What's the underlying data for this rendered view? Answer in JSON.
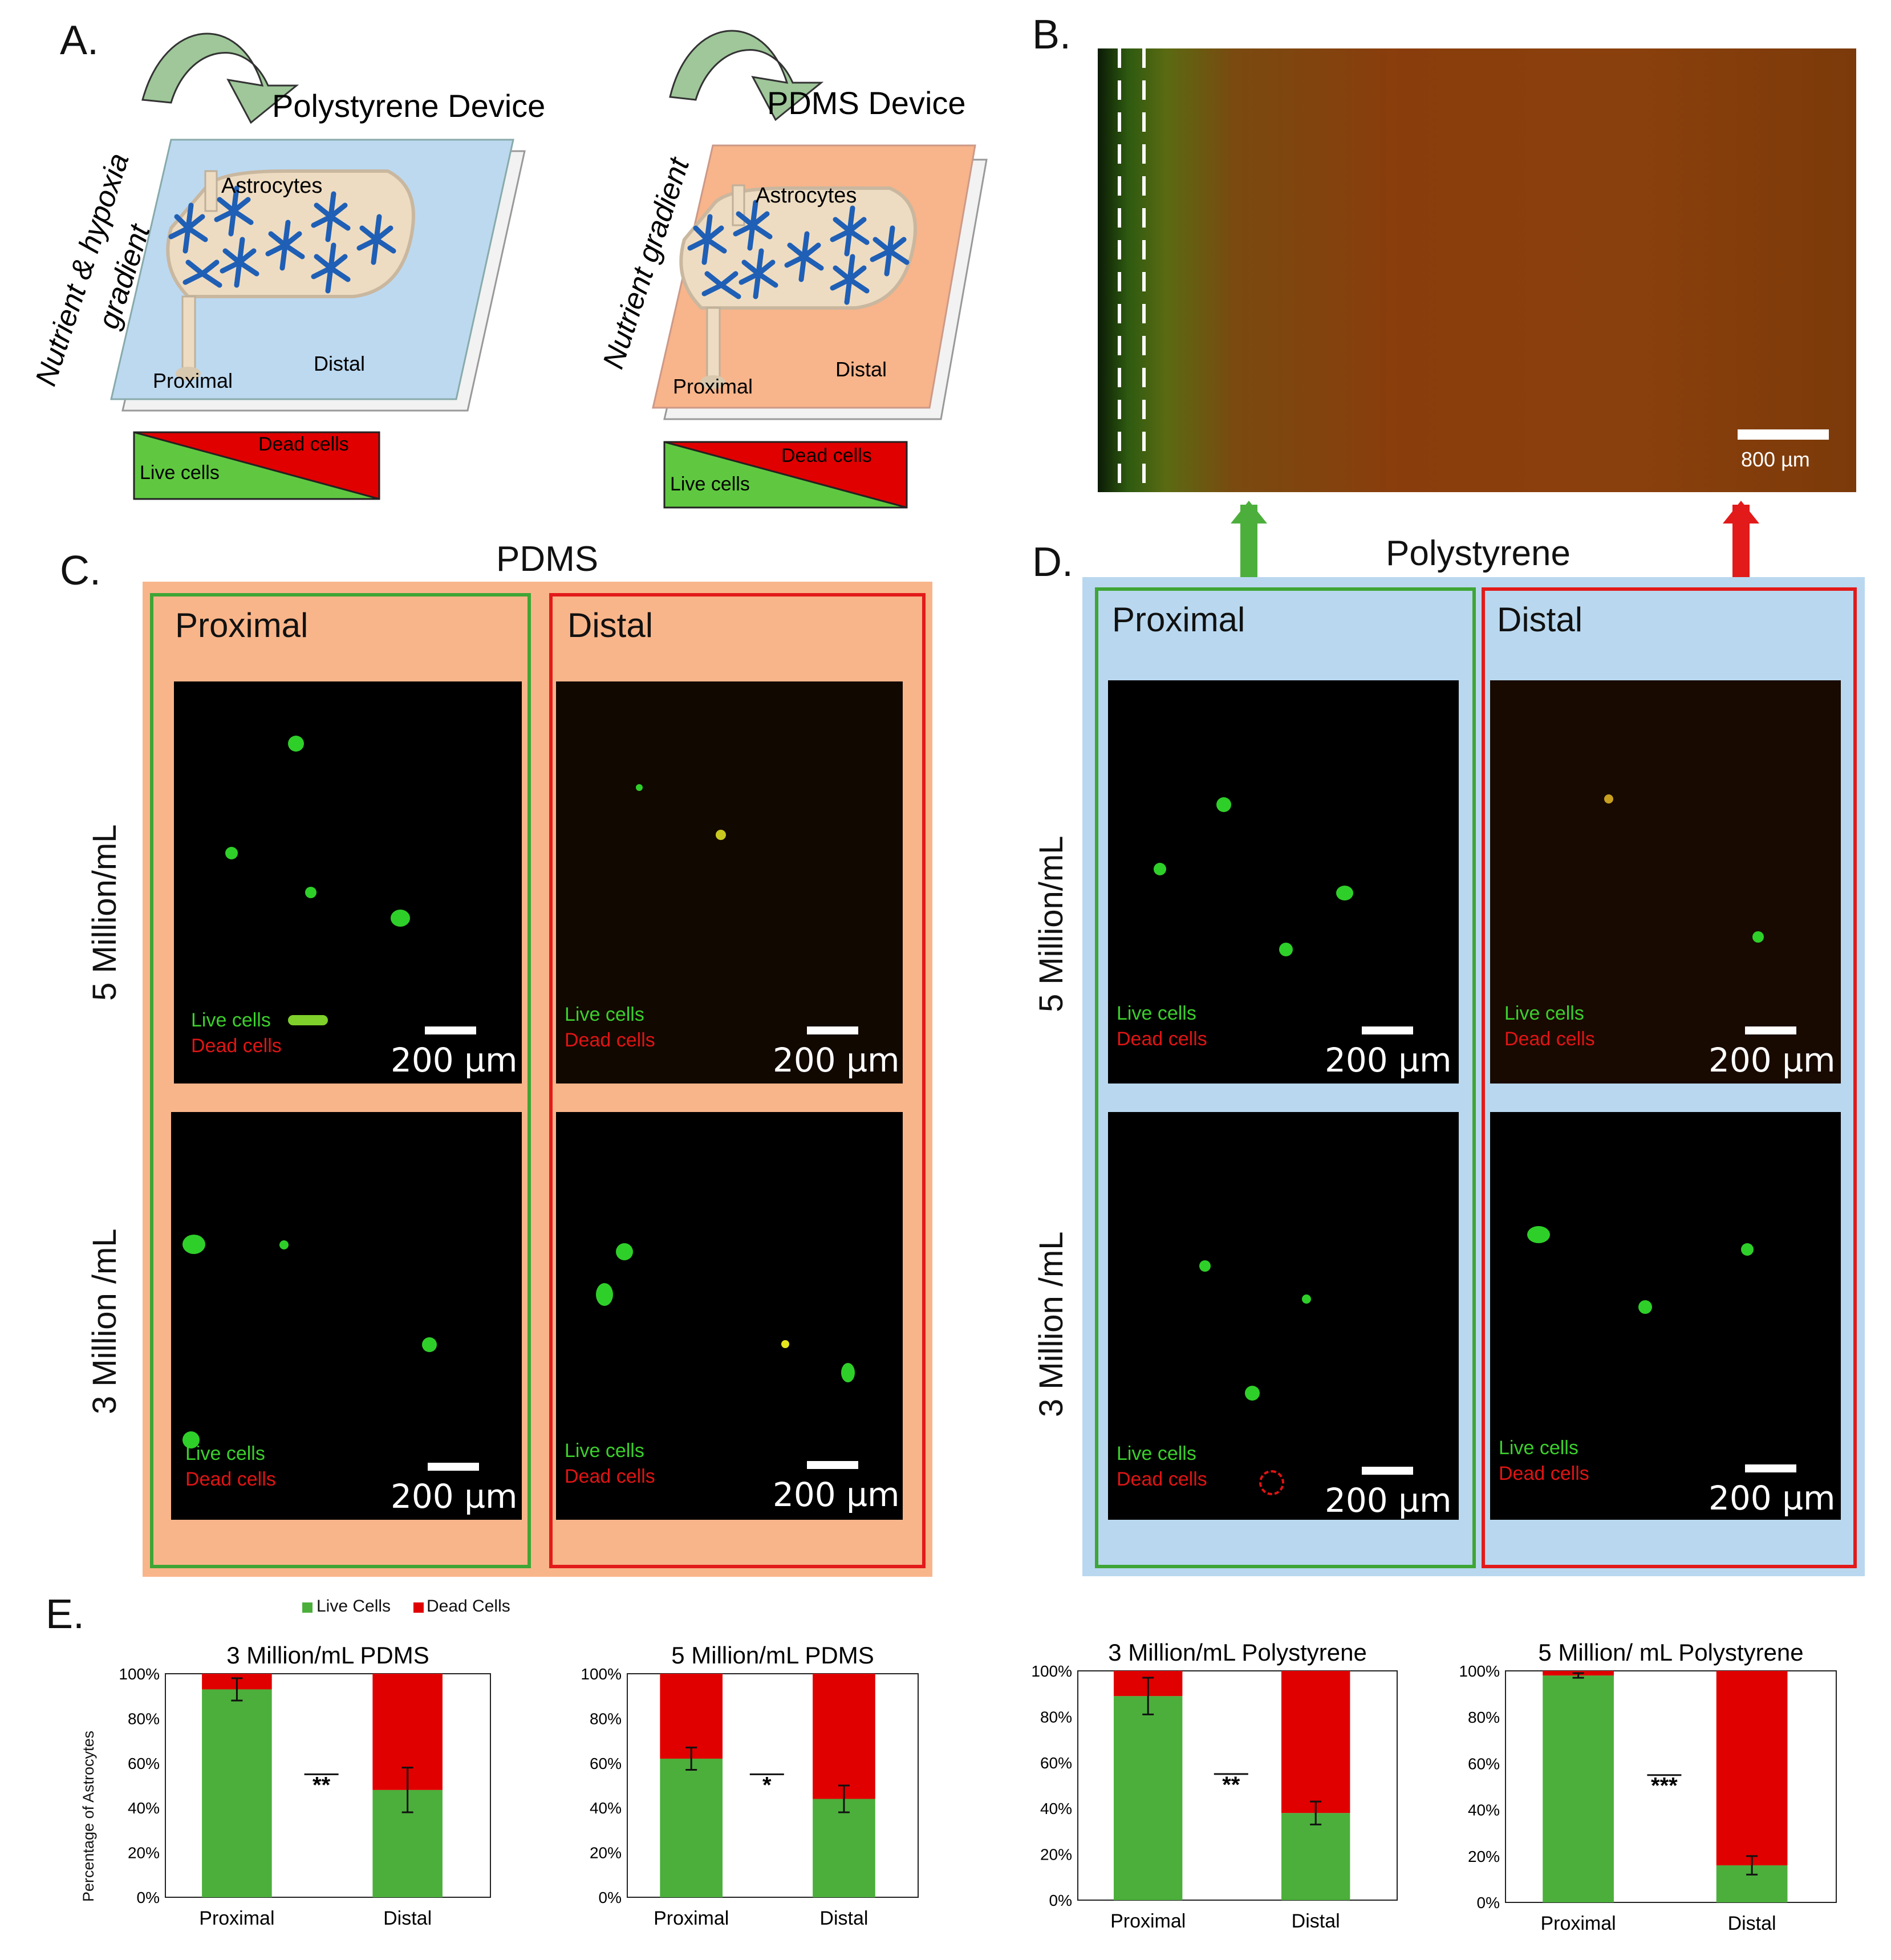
{
  "panels": {
    "a": {
      "label": "A.",
      "device1": {
        "title": "Polystyrene Device",
        "side_label_line1": "Nutrient & hypoxia",
        "side_label_line2": "gradient",
        "cells": "Astrocytes",
        "proximal": "Proximal",
        "distal": "Distal",
        "dead": "Dead cells",
        "live": "Live cells",
        "plate_color": "#bcd9f0"
      },
      "device2": {
        "title": "PDMS Device",
        "side_label": "Nutrient gradient",
        "cells": "Astrocytes",
        "proximal": "Proximal",
        "distal": "Distal",
        "dead": "Dead cells",
        "live": "Live cells",
        "plate_color": "#f8b48a"
      }
    },
    "b": {
      "label": "B.",
      "scale": "800 µm"
    },
    "c": {
      "label": "C.",
      "title": "PDMS",
      "proximal": "Proximal",
      "distal": "Distal",
      "row1": "5 Million/mL",
      "row2": "3 Million /mL",
      "bg_color": "#f9b58a"
    },
    "d": {
      "label": "D.",
      "title": "Polystyrene",
      "proximal": "Proximal",
      "distal": "Distal",
      "row1": "5 Million/mL",
      "row2": "3 Million /mL",
      "bg_color": "#b9d8ef"
    },
    "micro": {
      "live": "Live cells",
      "dead": "Dead cells",
      "scale": "200 µm"
    },
    "e": {
      "label": "E.",
      "legend_live": "Live Cells",
      "legend_dead": "Dead Cells",
      "ylabel": "Percentage of Astrocytes"
    }
  },
  "colors": {
    "live": "#4caf3c",
    "dead": "#e00000",
    "prox_frame": "#3fa535",
    "dist_frame": "#e21a1a"
  },
  "chart_data": [
    {
      "type": "bar",
      "stacked": true,
      "title": "3 Million/mL PDMS",
      "categories": [
        "Proximal",
        "Distal"
      ],
      "series": [
        {
          "name": "Live Cells",
          "values": [
            93,
            48
          ],
          "errors": [
            5,
            10
          ]
        },
        {
          "name": "Dead Cells",
          "values": [
            7,
            52
          ]
        }
      ],
      "ylim": [
        0,
        100
      ],
      "yticks": [
        "0%",
        "20%",
        "40%",
        "60%",
        "80%",
        "100%"
      ],
      "significance": "**"
    },
    {
      "type": "bar",
      "stacked": true,
      "title": "5 Million/mL PDMS",
      "categories": [
        "Proximal",
        "Distal"
      ],
      "series": [
        {
          "name": "Live Cells",
          "values": [
            62,
            44
          ],
          "errors": [
            5,
            6
          ]
        },
        {
          "name": "Dead Cells",
          "values": [
            38,
            56
          ]
        }
      ],
      "ylim": [
        0,
        100
      ],
      "yticks": [
        "0%",
        "20%",
        "40%",
        "60%",
        "80%",
        "100%"
      ],
      "significance": "*"
    },
    {
      "type": "bar",
      "stacked": true,
      "title": "3 Million/mL Polystyrene",
      "categories": [
        "Proximal",
        "Distal"
      ],
      "series": [
        {
          "name": "Live Cells",
          "values": [
            89,
            38
          ],
          "errors": [
            8,
            5
          ]
        },
        {
          "name": "Dead Cells",
          "values": [
            11,
            62
          ]
        }
      ],
      "ylim": [
        0,
        100
      ],
      "yticks": [
        "0%",
        "20%",
        "40%",
        "60%",
        "80%",
        "100%"
      ],
      "significance": "**"
    },
    {
      "type": "bar",
      "stacked": true,
      "title": "5 Million/ mL Polystyrene",
      "categories": [
        "Proximal",
        "Distal"
      ],
      "series": [
        {
          "name": "Live Cells",
          "values": [
            98,
            16
          ],
          "errors": [
            1,
            4
          ]
        },
        {
          "name": "Dead Cells",
          "values": [
            2,
            84
          ]
        }
      ],
      "ylim": [
        0,
        100
      ],
      "yticks": [
        "0%",
        "20%",
        "40%",
        "60%",
        "80%",
        "100%"
      ],
      "significance": "***"
    }
  ]
}
